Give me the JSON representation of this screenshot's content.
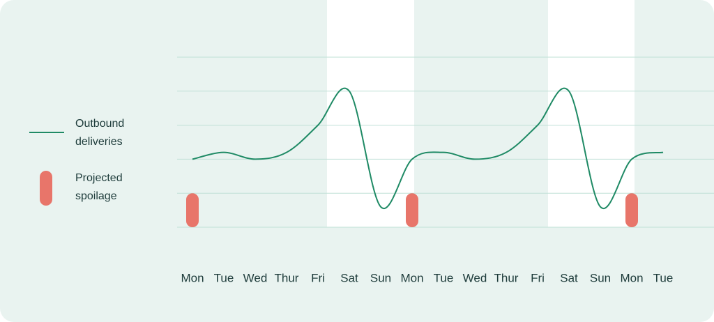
{
  "chart_data": {
    "type": "line",
    "categories": [
      "Mon",
      "Tue",
      "Wed",
      "Thur",
      "Fri",
      "Sat",
      "Sun",
      "Mon",
      "Tue",
      "Wed",
      "Thur",
      "Fri",
      "Sat",
      "Sun",
      "Mon",
      "Tue"
    ],
    "series": [
      {
        "name": "Outbound deliveries",
        "color": "#1f8a65",
        "type": "line",
        "values": [
          2,
          2.2,
          2,
          2.2,
          3,
          4,
          0.6,
          2,
          2.2,
          2,
          2.2,
          3,
          4,
          0.6,
          2,
          2.2
        ]
      },
      {
        "name": "Projected spoilage",
        "color": "#e8756a",
        "type": "pill",
        "values": [
          1,
          null,
          null,
          null,
          null,
          null,
          null,
          1,
          null,
          null,
          null,
          null,
          null,
          null,
          1,
          null
        ]
      }
    ],
    "ylim": [
      0,
      5
    ],
    "yticks": [
      0,
      1,
      2,
      3,
      4,
      5
    ],
    "grid": true
  }
}
